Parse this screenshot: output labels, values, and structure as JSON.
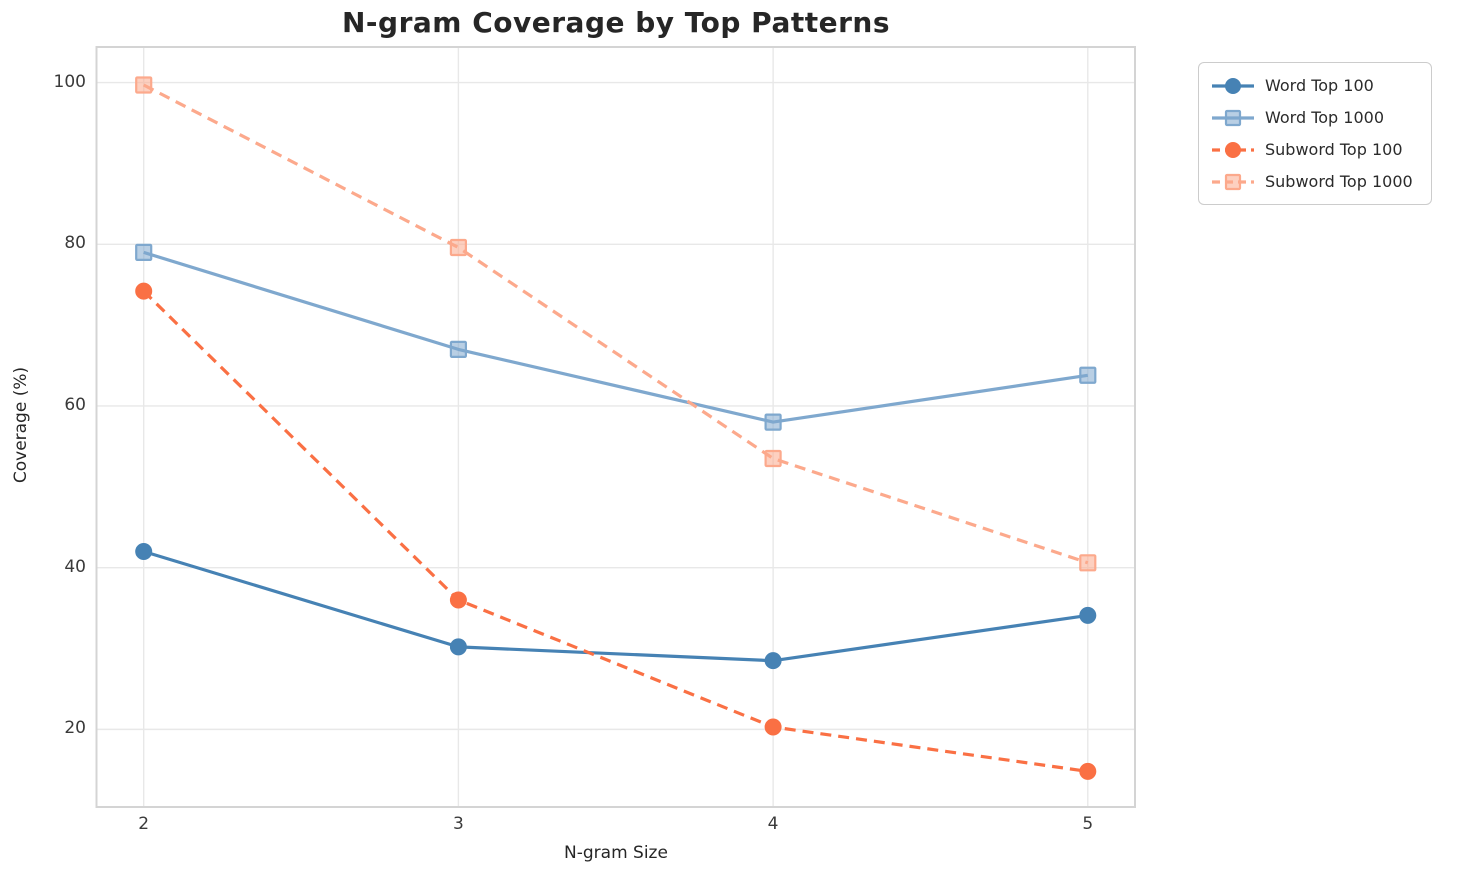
{
  "chart_data": {
    "type": "line",
    "title": "N-gram Coverage by Top Patterns",
    "xlabel": "N-gram Size",
    "ylabel": "Coverage (%)",
    "x": [
      2,
      3,
      4,
      5
    ],
    "series": [
      {
        "name": "Word Top 100",
        "values": [
          42.0,
          30.2,
          28.5,
          34.1
        ],
        "color": "#4682B4",
        "marker": "circle",
        "line_style": "solid"
      },
      {
        "name": "Word Top 1000",
        "values": [
          79.0,
          67.0,
          58.0,
          63.8
        ],
        "color": "#7FA8CE",
        "marker": "square",
        "line_style": "solid"
      },
      {
        "name": "Subword Top 100",
        "values": [
          74.2,
          36.0,
          20.3,
          14.8
        ],
        "color": "#FA7044",
        "marker": "circle",
        "line_style": "dashed"
      },
      {
        "name": "Subword Top 1000",
        "values": [
          99.7,
          79.6,
          53.5,
          40.6
        ],
        "color": "#FCA98C",
        "marker": "square",
        "line_style": "dashed"
      }
    ],
    "xticks": [
      2,
      3,
      4,
      5
    ],
    "yticks": [
      20,
      40,
      60,
      80,
      100
    ],
    "xlim": [
      1.85,
      5.15
    ],
    "ylim": [
      10.4,
      104.4
    ],
    "grid": true,
    "legend_position": "outside-top-right",
    "colors": {
      "grid": "#e8e8e8",
      "spine": "#d4d4d4",
      "text": "#262626",
      "tick_text": "#3a3a3a",
      "background": "#ffffff"
    }
  }
}
